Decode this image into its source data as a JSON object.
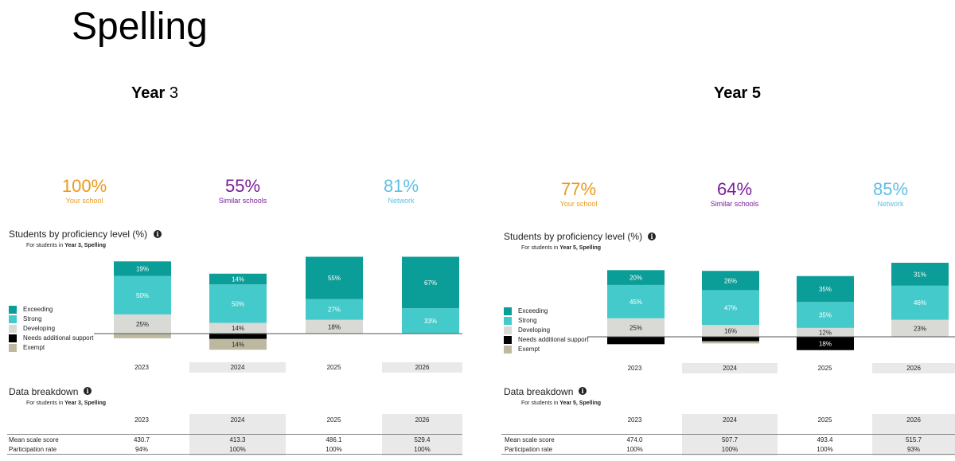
{
  "page_title": "Spelling",
  "colors": {
    "exceeding": "#0b9d97",
    "strong": "#45cacb",
    "developing": "#d9d9d6",
    "needs_support": "#000000",
    "exempt": "#bdb9a0",
    "your_school": "#e99a1c",
    "similar_schools": "#7a1f9a",
    "network": "#5fbfe4"
  },
  "legend": [
    "Exceeding",
    "Strong",
    "Developing",
    "Needs additional support",
    "Exempt"
  ],
  "panels": [
    {
      "heading_bold": "Year",
      "heading_rest": "3",
      "kpis": [
        {
          "value": "100%",
          "label": "Your school"
        },
        {
          "value": "55%",
          "label": "Similar schools"
        },
        {
          "value": "81%",
          "label": "Network"
        }
      ],
      "chart_title": "Students by proficiency level (%)",
      "chart_note_prefix": "For students in",
      "chart_note_bold": "Year 3, Spelling",
      "breakdown_title": "Data breakdown",
      "breakdown_note_prefix": "For students in",
      "breakdown_note_bold": "Year 3, Spelling",
      "years": [
        "2023",
        "2024",
        "2025",
        "2026"
      ],
      "rows": [
        {
          "label": "Mean scale score",
          "values": [
            "430.7",
            "413.3",
            "486.1",
            "529.4"
          ]
        },
        {
          "label": "Participation rate",
          "values": [
            "94%",
            "100%",
            "100%",
            "100%"
          ]
        }
      ]
    },
    {
      "heading_bold": "Year 5",
      "heading_rest": "",
      "kpis": [
        {
          "value": "77%",
          "label": "Your school"
        },
        {
          "value": "64%",
          "label": "Similar schools"
        },
        {
          "value": "85%",
          "label": "Network"
        }
      ],
      "chart_title": "Students by proficiency level (%)",
      "chart_note_prefix": "For students in",
      "chart_note_bold": "Year 5, Spelling",
      "breakdown_title": "Data breakdown",
      "breakdown_note_prefix": "For students in",
      "breakdown_note_bold": "Year 5, Spelling",
      "years": [
        "2023",
        "2024",
        "2025",
        "2026"
      ],
      "rows": [
        {
          "label": "Mean scale score",
          "values": [
            "474.0",
            "507.7",
            "493.4",
            "515.7"
          ]
        },
        {
          "label": "Participation rate",
          "values": [
            "100%",
            "100%",
            "100%",
            "93%"
          ]
        }
      ]
    }
  ],
  "chart_data": [
    {
      "type": "bar",
      "title": "Students by proficiency level (%)",
      "categories": [
        "2023",
        "2024",
        "2025",
        "2026"
      ],
      "series": [
        {
          "name": "Exceeding",
          "values": [
            19,
            14,
            55,
            67
          ]
        },
        {
          "name": "Strong",
          "values": [
            50,
            50,
            27,
            33
          ]
        },
        {
          "name": "Developing",
          "values": [
            25,
            14,
            18,
            0
          ]
        },
        {
          "name": "Needs additional support",
          "values": [
            0,
            7,
            0,
            0
          ]
        },
        {
          "name": "Exempt",
          "values": [
            6,
            14,
            0,
            0
          ]
        }
      ],
      "labels": [
        [
          "19%",
          "14%",
          "55%",
          "67%"
        ],
        [
          "50%",
          "50%",
          "27%",
          "33%"
        ],
        [
          "25%",
          "14%",
          "18%",
          ""
        ],
        [
          "",
          "",
          "",
          ""
        ],
        [
          "",
          "14%",
          "",
          ""
        ]
      ]
    },
    {
      "type": "bar",
      "title": "Students by proficiency level (%)",
      "categories": [
        "2023",
        "2024",
        "2025",
        "2026"
      ],
      "series": [
        {
          "name": "Exceeding",
          "values": [
            20,
            26,
            35,
            31
          ]
        },
        {
          "name": "Strong",
          "values": [
            45,
            47,
            35,
            46
          ]
        },
        {
          "name": "Developing",
          "values": [
            25,
            16,
            12,
            23
          ]
        },
        {
          "name": "Needs additional support",
          "values": [
            10,
            6,
            18,
            0
          ]
        },
        {
          "name": "Exempt",
          "values": [
            0,
            3,
            0,
            0
          ]
        }
      ],
      "labels": [
        [
          "20%",
          "26%",
          "35%",
          "31%"
        ],
        [
          "45%",
          "47%",
          "35%",
          "46%"
        ],
        [
          "25%",
          "16%",
          "12%",
          "23%"
        ],
        [
          "",
          "",
          "18%",
          ""
        ],
        [
          "",
          "",
          "",
          ""
        ]
      ]
    }
  ]
}
